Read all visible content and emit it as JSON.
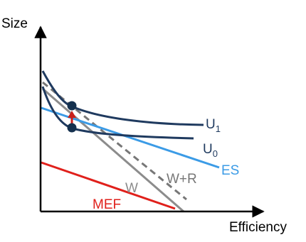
{
  "axes": {
    "y_label": "Size",
    "x_label": "Efficiency"
  },
  "curves": {
    "u1": {
      "label": "U",
      "subscript": "1",
      "color": "#1f3a5f"
    },
    "u0": {
      "label": "U",
      "subscript": "0",
      "color": "#1f3a5f"
    },
    "es": {
      "label": "ES",
      "color": "#3b9be6"
    },
    "w_plus_r": {
      "label": "W+R",
      "color": "#777777"
    },
    "w": {
      "label": "W",
      "color": "#8c8c8c"
    },
    "mef": {
      "label": "MEF",
      "color": "#e0201b"
    }
  },
  "markers": {
    "point_color": "#14304e",
    "arrow_color": "#c8201b"
  }
}
